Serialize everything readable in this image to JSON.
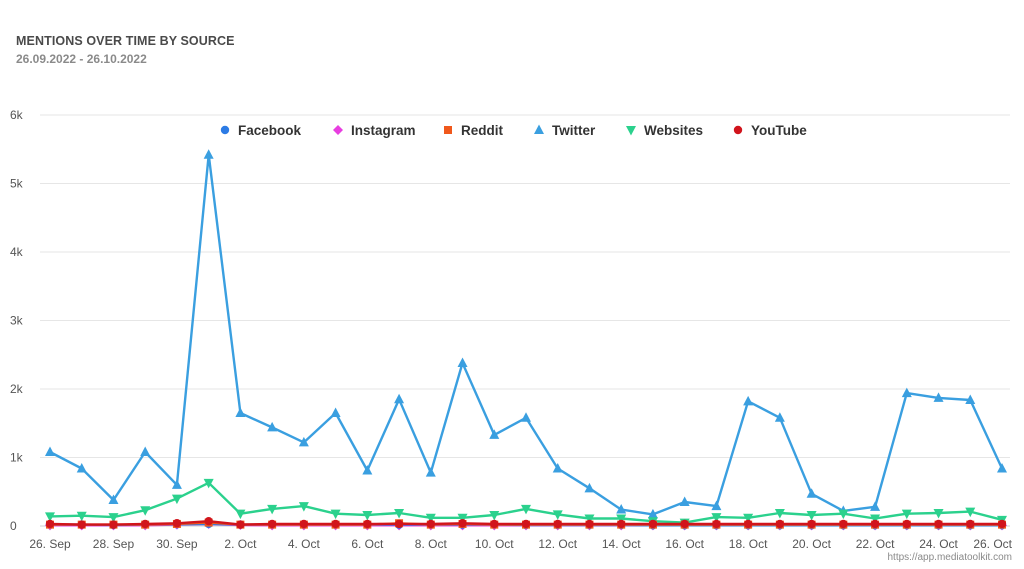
{
  "header": {
    "title": "MENTIONS OVER TIME BY SOURCE",
    "date_range": "26.09.2022 - 26.10.2022"
  },
  "footer": {
    "source_url": "https://app.mediatoolkit.com"
  },
  "chart_data": {
    "type": "line",
    "grid": true,
    "legend_position": "top-center",
    "ylim": [
      0,
      6000
    ],
    "y_ticks": [
      {
        "value": 0,
        "label": "0"
      },
      {
        "value": 1000,
        "label": "1k"
      },
      {
        "value": 2000,
        "label": "2k"
      },
      {
        "value": 3000,
        "label": "3k"
      },
      {
        "value": 4000,
        "label": "4k"
      },
      {
        "value": 5000,
        "label": "5k"
      },
      {
        "value": 6000,
        "label": "6k"
      }
    ],
    "x": [
      "26. Sep",
      "27. Sep",
      "28. Sep",
      "29. Sep",
      "30. Sep",
      "1. Oct",
      "2. Oct",
      "3. Oct",
      "4. Oct",
      "5. Oct",
      "6. Oct",
      "7. Oct",
      "8. Oct",
      "9. Oct",
      "10. Oct",
      "11. Oct",
      "12. Oct",
      "13. Oct",
      "14. Oct",
      "15. Oct",
      "16. Oct",
      "17. Oct",
      "18. Oct",
      "19. Oct",
      "20. Oct",
      "21. Oct",
      "22. Oct",
      "23. Oct",
      "24. Oct",
      "25. Oct",
      "26. Oct"
    ],
    "x_tick_labels": [
      "26. Sep",
      "",
      "28. Sep",
      "",
      "30. Sep",
      "",
      "2. Oct",
      "",
      "4. Oct",
      "",
      "6. Oct",
      "",
      "8. Oct",
      "",
      "10. Oct",
      "",
      "12. Oct",
      "",
      "14. Oct",
      "",
      "16. Oct",
      "",
      "18. Oct",
      "",
      "20. Oct",
      "",
      "22. Oct",
      "",
      "24. Oct",
      "",
      "26. Oct"
    ],
    "series": [
      {
        "name": "Facebook",
        "color": "#2c7be5",
        "marker": "circle",
        "values": [
          20,
          20,
          15,
          20,
          25,
          30,
          20,
          20,
          20,
          20,
          20,
          20,
          20,
          20,
          20,
          15,
          15,
          15,
          15,
          10,
          10,
          10,
          10,
          10,
          10,
          10,
          10,
          10,
          10,
          10,
          10
        ]
      },
      {
        "name": "Instagram",
        "color": "#e83ee0",
        "marker": "diamond",
        "values": [
          10,
          10,
          10,
          10,
          20,
          30,
          15,
          10,
          10,
          10,
          10,
          10,
          10,
          10,
          10,
          10,
          10,
          10,
          10,
          10,
          10,
          10,
          10,
          10,
          10,
          10,
          10,
          10,
          10,
          10,
          10
        ]
      },
      {
        "name": "Reddit",
        "color": "#f0581c",
        "marker": "square",
        "values": [
          20,
          20,
          20,
          20,
          30,
          50,
          20,
          20,
          20,
          20,
          20,
          40,
          20,
          30,
          20,
          20,
          20,
          20,
          20,
          20,
          20,
          20,
          20,
          20,
          20,
          20,
          20,
          20,
          20,
          20,
          20
        ]
      },
      {
        "name": "Twitter",
        "color": "#3a9fe0",
        "marker": "triangle-up",
        "values": [
          1080,
          840,
          380,
          1080,
          600,
          5420,
          1650,
          1440,
          1220,
          1650,
          810,
          1850,
          780,
          2380,
          1330,
          1580,
          840,
          550,
          240,
          170,
          350,
          290,
          1820,
          1580,
          470,
          220,
          280,
          1940,
          1870,
          1840,
          840
        ]
      },
      {
        "name": "Websites",
        "color": "#2bd18d",
        "marker": "triangle-down",
        "values": [
          140,
          150,
          130,
          230,
          400,
          630,
          180,
          250,
          290,
          180,
          160,
          190,
          120,
          120,
          160,
          250,
          170,
          110,
          110,
          70,
          50,
          130,
          120,
          190,
          160,
          180,
          110,
          180,
          190,
          210,
          90
        ]
      },
      {
        "name": "YouTube",
        "color": "#d1141c",
        "marker": "circle",
        "values": [
          30,
          20,
          20,
          30,
          40,
          70,
          20,
          30,
          30,
          30,
          30,
          30,
          30,
          40,
          30,
          30,
          30,
          30,
          30,
          30,
          30,
          30,
          30,
          30,
          30,
          30,
          30,
          30,
          30,
          30,
          30
        ]
      }
    ]
  }
}
